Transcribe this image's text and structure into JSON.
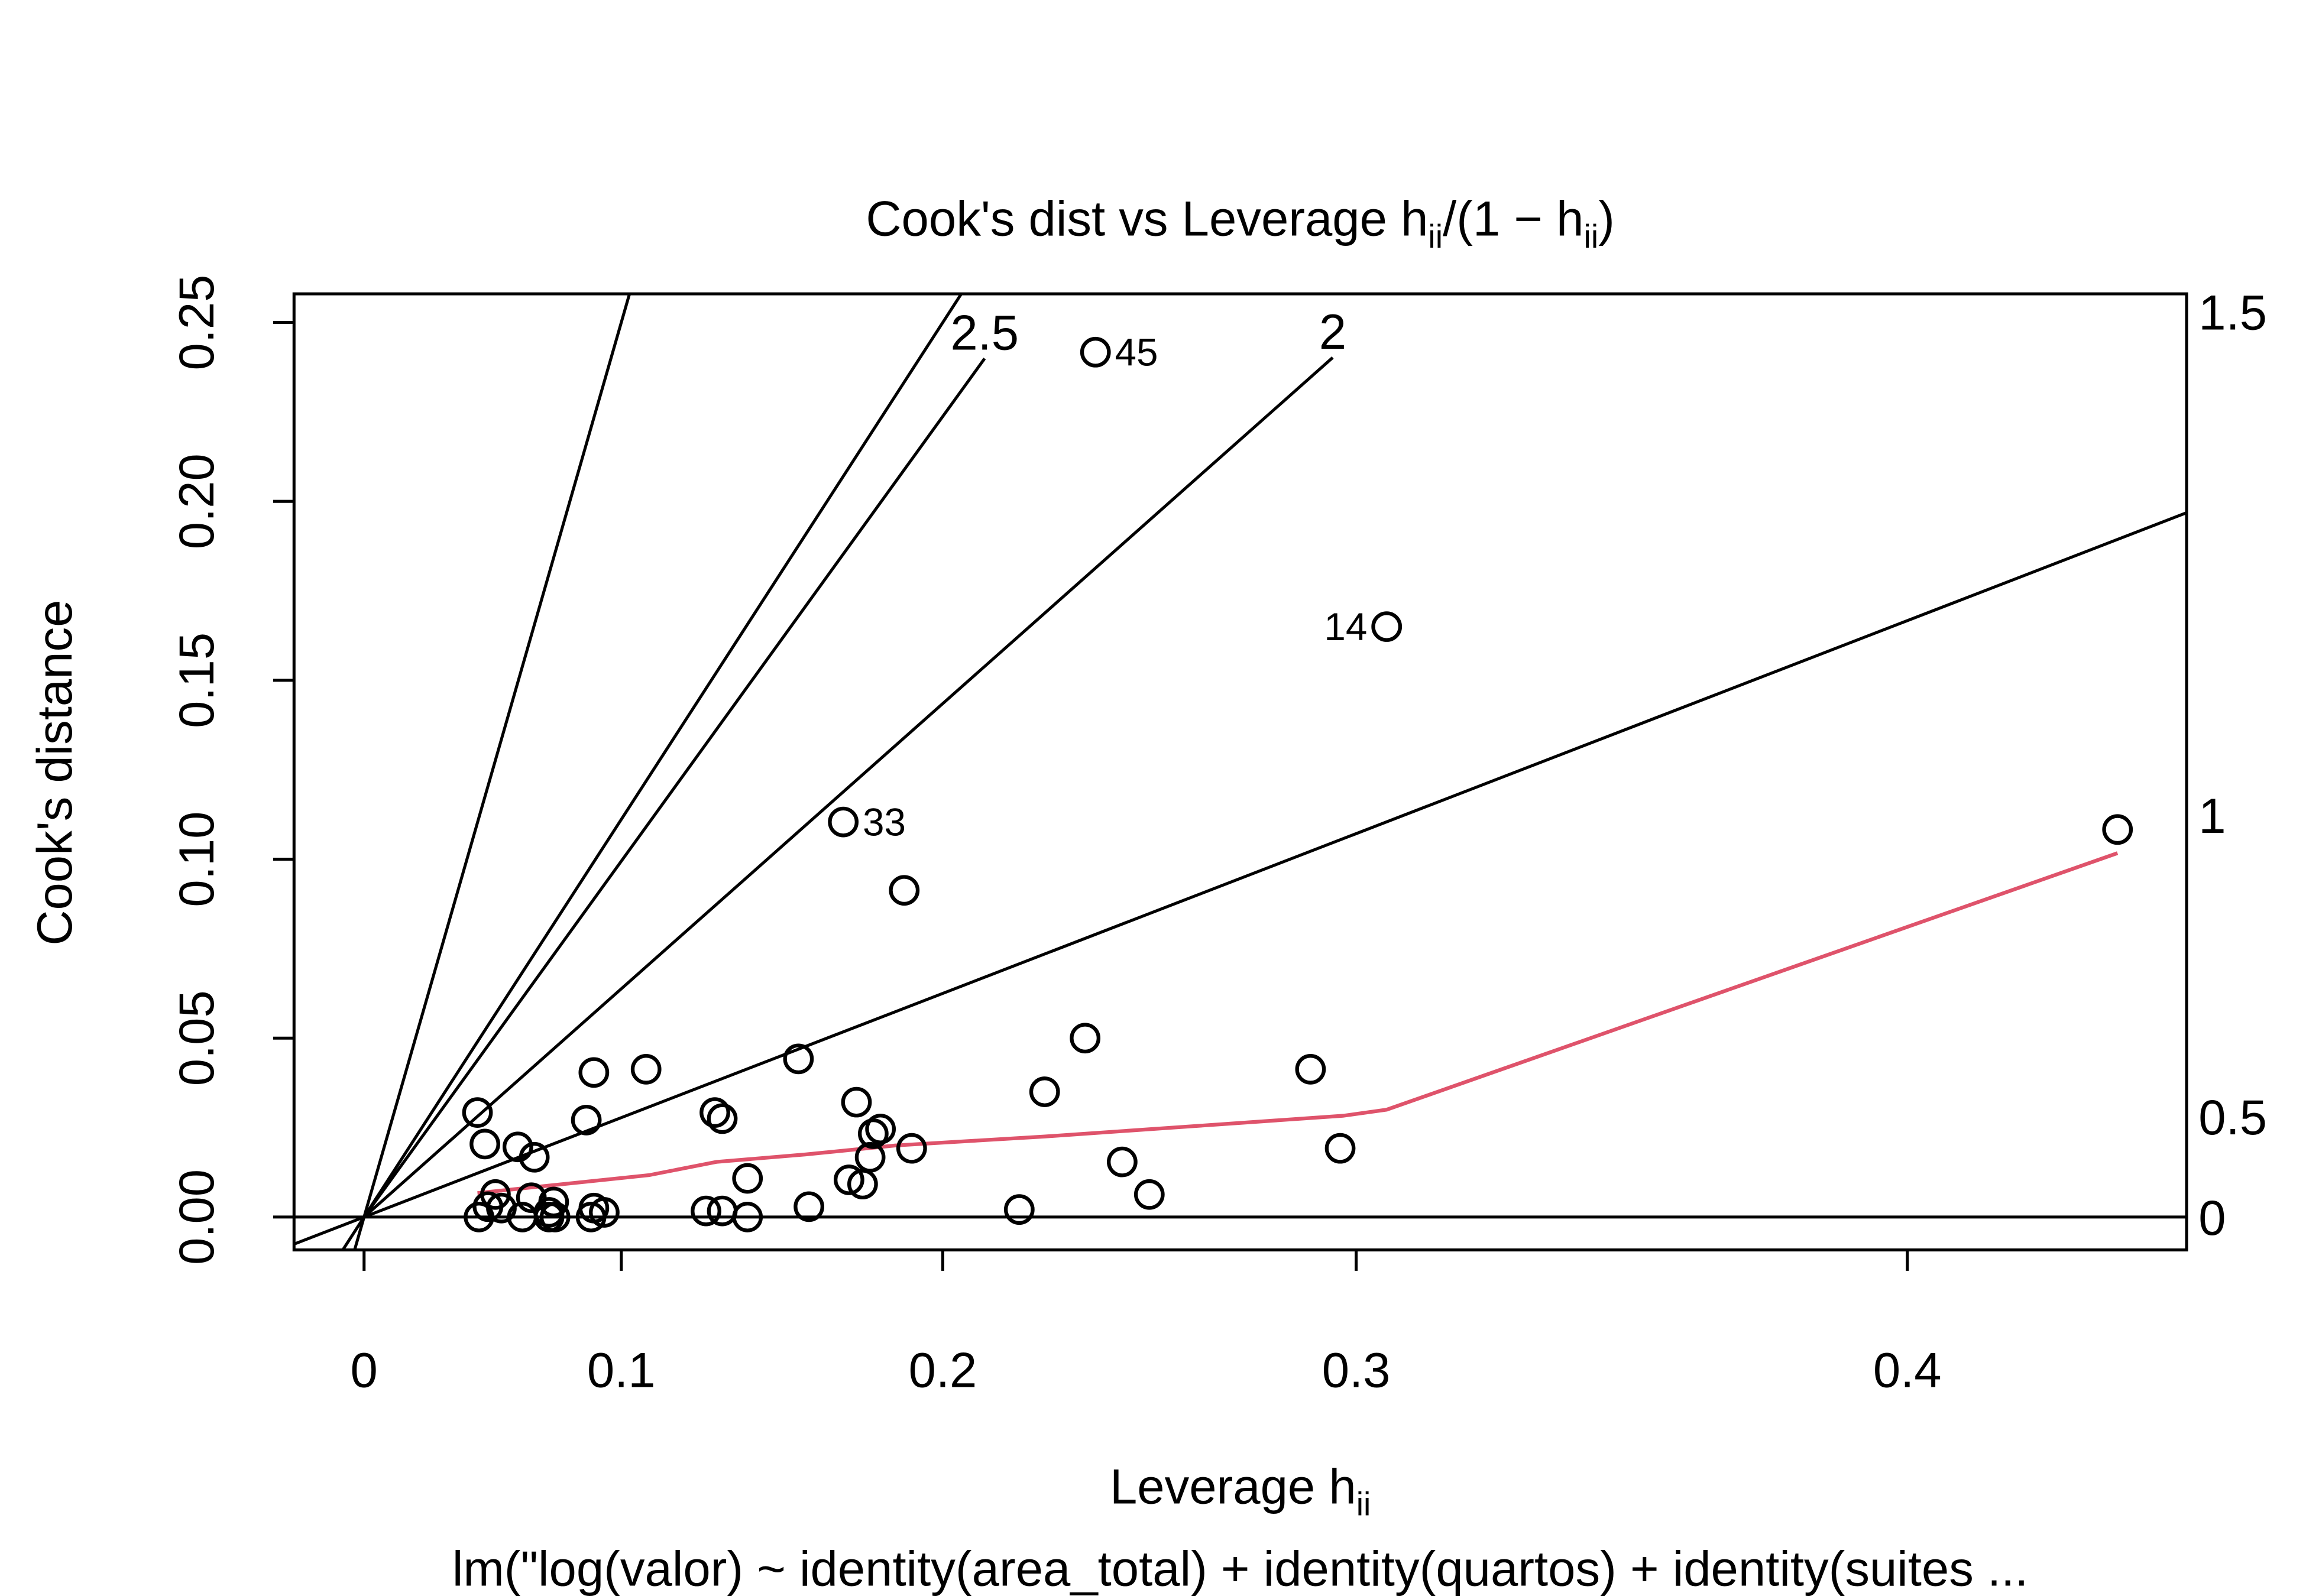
{
  "chart_data": {
    "type": "scatter",
    "title_parts": [
      {
        "text": "Cook's dist vs Leverage  h"
      },
      {
        "text": "ii",
        "sub": true
      },
      {
        "text": "/(1 − h"
      },
      {
        "text": "ii",
        "sub": true
      },
      {
        "text": ")"
      }
    ],
    "xlabel_parts": [
      {
        "text": "Leverage  h"
      },
      {
        "text": "ii",
        "sub": true
      }
    ],
    "ylabel": "Cook's distance",
    "caption": "lm(\"log(valor) ~ identity(area_total) + identity(quartos) + identity(suites ...",
    "xscale": "h/(1-h)",
    "xlim": [
      -0.0312,
      0.4405
    ],
    "ylim": [
      -0.0092,
      0.258
    ],
    "xticks": [
      0,
      0.1,
      0.2,
      0.3,
      0.4
    ],
    "yticks": [
      {
        "value": 0,
        "label": "0.00"
      },
      {
        "value": 0.05,
        "label": "0.05"
      },
      {
        "value": 0.1,
        "label": "0.10"
      },
      {
        "value": 0.15,
        "label": "0.15"
      },
      {
        "value": 0.2,
        "label": "0.20"
      },
      {
        "value": 0.25,
        "label": "0.25"
      }
    ],
    "series": [
      {
        "color": "#000000",
        "x": [
          0.0467,
          0.0496,
          0.0623,
          0.0685,
          0.0473,
          0.0508,
          0.0537,
          0.056,
          0.064,
          0.0674,
          0.074,
          0.0757,
          0.0762,
          0.074,
          0.0876,
          0.0903,
          0.0893,
          0.0903,
          0.094,
          0.1086,
          0.1287,
          0.1316,
          0.134,
          0.134,
          0.1421,
          0.1421,
          0.158,
          0.1612,
          0.1715,
          0.1732,
          0.1754,
          0.1772,
          0.1794,
          0.1803,
          0.1824,
          0.1892,
          0.1913,
          0.2206,
          0.2272,
          0.2375,
          0.2401,
          0.2467,
          0.2533,
          0.2902,
          0.2966,
          0.3064,
          0.431
        ],
        "values": [
          0.0292,
          0.0204,
          0.0196,
          0.0167,
          0,
          0.0029,
          0.0063,
          0.0025,
          0,
          0.0054,
          0.0013,
          0.0042,
          0,
          0,
          0.0271,
          0.0404,
          0,
          0.0025,
          0.0013,
          0.0413,
          0.0017,
          0.0292,
          0.0275,
          0.0017,
          0,
          0.0108,
          0.0442,
          0.0029,
          0.1104,
          0.0104,
          0.0321,
          0.0092,
          0.0167,
          0.0233,
          0.0246,
          0.0913,
          0.0192,
          0.0021,
          0.035,
          0.05,
          0.2417,
          0.0154,
          0.0063,
          0.0413,
          0.0192,
          0.165,
          0.1083
        ]
      }
    ],
    "point_labels": [
      {
        "index": 28,
        "text": "33",
        "side": "right"
      },
      {
        "index": 40,
        "text": "45",
        "side": "right"
      },
      {
        "index": 45,
        "text": "14",
        "side": "left"
      }
    ],
    "smooth": {
      "color": "#DF536B",
      "x": [
        0.0467,
        0.1096,
        0.1321,
        0.1603,
        0.1867,
        0.2272,
        0.2639,
        0.2972,
        0.3064,
        0.431
      ],
      "values": [
        0.0067,
        0.0117,
        0.0154,
        0.0175,
        0.02,
        0.0225,
        0.0254,
        0.0283,
        0.03,
        0.1017
      ]
    },
    "contours": [
      {
        "level": 0,
        "slope": 0,
        "label_y": 0
      },
      {
        "level": 0.5,
        "slope": 0.25,
        "label_y": 0.0281
      },
      {
        "level": 1,
        "slope": 1,
        "label_y": 0.1124
      },
      {
        "level": 1.5,
        "slope": 2.25,
        "label_y": 0.253
      },
      {
        "level": 2,
        "slope": 0.574,
        "end_x": 0.295
      },
      {
        "level": 2.5,
        "slope": 0.895,
        "end_x": 0.2114
      }
    ]
  }
}
